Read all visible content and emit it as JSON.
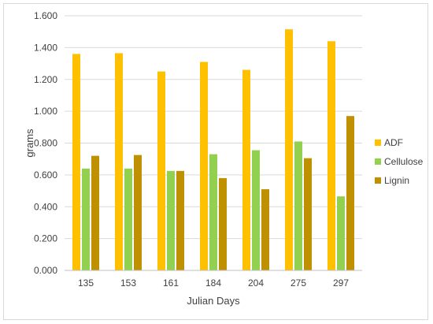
{
  "chart_data": {
    "type": "bar",
    "title": "",
    "xlabel": "Julian Days",
    "ylabel": "grams",
    "categories": [
      "135",
      "153",
      "161",
      "184",
      "204",
      "275",
      "297"
    ],
    "series": [
      {
        "name": "ADF",
        "color": "#ffc000",
        "values": [
          1.36,
          1.365,
          1.25,
          1.31,
          1.26,
          1.515,
          1.44
        ]
      },
      {
        "name": "Cellulose",
        "color": "#92d050",
        "values": [
          0.64,
          0.64,
          0.625,
          0.73,
          0.755,
          0.81,
          0.465
        ]
      },
      {
        "name": "Lignin",
        "color": "#bf9000",
        "values": [
          0.72,
          0.725,
          0.625,
          0.58,
          0.51,
          0.705,
          0.97
        ]
      }
    ],
    "ylim": [
      0,
      1.6
    ],
    "yticks": [
      "0.000",
      "0.200",
      "0.400",
      "0.600",
      "0.800",
      "1.000",
      "1.200",
      "1.400",
      "1.600"
    ],
    "ytick_values": [
      0,
      0.2,
      0.4,
      0.6,
      0.8,
      1.0,
      1.2,
      1.4,
      1.6
    ],
    "grid": true,
    "legend_position": "right"
  }
}
